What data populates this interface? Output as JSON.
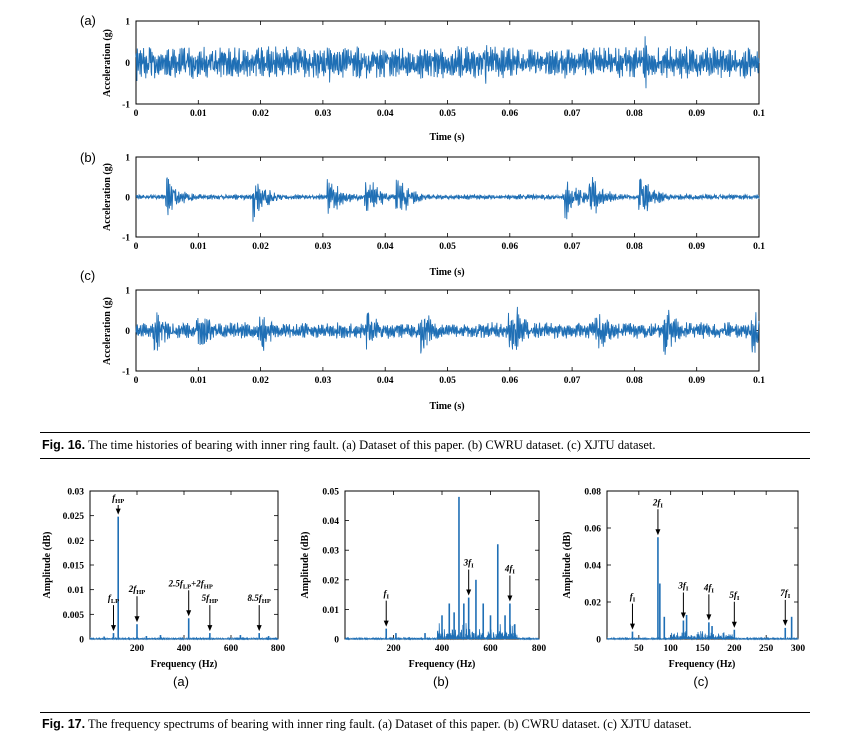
{
  "fig16": {
    "caption_label": "Fig. 16.",
    "caption_text": "The time histories of bearing with inner ring fault. (a) Dataset of this paper. (b) CWRU dataset. (c) XJTU dataset."
  },
  "fig17": {
    "caption_label": "Fig. 17.",
    "caption_text": "The frequency spectrums of bearing with inner ring fault. (a) Dataset of this paper. (b) CWRU dataset. (c) XJTU dataset."
  },
  "colors": {
    "signal": "#1f6fb5",
    "axis": "#000000"
  },
  "chart_data": [
    {
      "id": "16a",
      "type": "line",
      "panel_label": "(a)",
      "xlabel": "Time (s)",
      "ylabel": "Acceleration (g)",
      "xlim": [
        0,
        0.1
      ],
      "ylim": [
        -1,
        1
      ],
      "xticks": [
        0,
        0.01,
        0.02,
        0.03,
        0.04,
        0.05,
        0.06,
        0.07,
        0.08,
        0.09,
        0.1
      ],
      "xticklabels": [
        "0",
        "0.01",
        "0.02",
        "0.03",
        "0.04",
        "0.05",
        "0.06",
        "0.07",
        "0.08",
        "0.09",
        "0.1"
      ],
      "yticks": [
        -1,
        0,
        1
      ],
      "yticklabels": [
        "-1",
        "0",
        "1"
      ],
      "signal": {
        "envelope_peak_g": 0.55,
        "baseline_g": 0.35,
        "bursts_s": [
          0.0,
          0.031,
          0.056,
          0.082
        ]
      }
    },
    {
      "id": "16b",
      "type": "line",
      "panel_label": "(b)",
      "xlabel": "Time (s)",
      "ylabel": "Acceleration (g)",
      "xlim": [
        0,
        0.1
      ],
      "ylim": [
        -1,
        1
      ],
      "xticks": [
        0,
        0.01,
        0.02,
        0.03,
        0.04,
        0.05,
        0.06,
        0.07,
        0.08,
        0.09,
        0.1
      ],
      "xticklabels": [
        "0",
        "0.01",
        "0.02",
        "0.03",
        "0.04",
        "0.05",
        "0.06",
        "0.07",
        "0.08",
        "0.09",
        "0.1"
      ],
      "yticks": [
        -1,
        0,
        1
      ],
      "yticklabels": [
        "-1",
        "0",
        "1"
      ],
      "signal": {
        "envelope_peak_g": 0.55,
        "baseline_g": 0.06,
        "bursts_s": [
          0.005,
          0.019,
          0.031,
          0.037,
          0.042,
          0.069,
          0.073,
          0.081
        ]
      }
    },
    {
      "id": "16c",
      "type": "line",
      "panel_label": "(c)",
      "xlabel": "Time (s)",
      "ylabel": "Acceleration (g)",
      "xlim": [
        0,
        0.1
      ],
      "ylim": [
        -1,
        1
      ],
      "xticks": [
        0,
        0.01,
        0.02,
        0.03,
        0.04,
        0.05,
        0.06,
        0.07,
        0.08,
        0.09,
        0.1
      ],
      "xticklabels": [
        "0",
        "0.01",
        "0.02",
        "0.03",
        "0.04",
        "0.05",
        "0.06",
        "0.07",
        "0.08",
        "0.09",
        "0.1"
      ],
      "yticks": [
        -1,
        0,
        1
      ],
      "yticklabels": [
        "-1",
        "0",
        "1"
      ],
      "signal": {
        "envelope_peak_g": 0.6,
        "baseline_g": 0.18,
        "bursts_s": [
          0.003,
          0.01,
          0.02,
          0.037,
          0.046,
          0.06,
          0.061,
          0.074,
          0.085,
          0.099
        ]
      }
    },
    {
      "id": "17a",
      "type": "line",
      "panel_label": "(a)",
      "xlabel": "Frequency (Hz)",
      "ylabel": "Amplitude (dB)",
      "xlim": [
        0,
        800
      ],
      "ylim": [
        0,
        0.03
      ],
      "xticks": [
        200,
        400,
        600,
        800
      ],
      "xticklabels": [
        "200",
        "400",
        "600",
        "800"
      ],
      "yticks": [
        0,
        0.005,
        0.01,
        0.015,
        0.02,
        0.025,
        0.03
      ],
      "yticklabels": [
        "0",
        "0.005",
        "0.01",
        "0.015",
        "0.02",
        "0.025",
        "0.03"
      ],
      "peaks": [
        [
          60,
          0.0005
        ],
        [
          100,
          0.0012
        ],
        [
          120,
          0.0248
        ],
        [
          200,
          0.003
        ],
        [
          240,
          0.0006
        ],
        [
          300,
          0.0008
        ],
        [
          420,
          0.0042
        ],
        [
          510,
          0.0012
        ],
        [
          640,
          0.0008
        ],
        [
          720,
          0.0012
        ],
        [
          760,
          0.0006
        ]
      ],
      "annotations": [
        {
          "text": "f",
          "sub": "LP",
          "x": 100,
          "y": 0.0012
        },
        {
          "text": "f",
          "sub": "HP",
          "x": 120,
          "y": 0.0248
        },
        {
          "text": "2f",
          "sub": "HP",
          "x": 200,
          "y": 0.003
        },
        {
          "text": "2.5f",
          "sub": "LP",
          "text2": "+2f",
          "sub2": "HP",
          "x": 420,
          "y": 0.0042
        },
        {
          "text": "5f",
          "sub": "HP",
          "x": 510,
          "y": 0.0012
        },
        {
          "text": "8.5f",
          "sub": "HP",
          "x": 720,
          "y": 0.0012
        }
      ]
    },
    {
      "id": "17b",
      "type": "line",
      "panel_label": "(b)",
      "xlabel": "Frequency (Hz)",
      "ylabel": "Amplitude (dB)",
      "xlim": [
        0,
        800
      ],
      "ylim": [
        0,
        0.05
      ],
      "xticks": [
        200,
        400,
        600,
        800
      ],
      "xticklabels": [
        "200",
        "400",
        "600",
        "800"
      ],
      "yticks": [
        0,
        0.01,
        0.02,
        0.03,
        0.04,
        0.05
      ],
      "yticklabels": [
        "0",
        "0.01",
        "0.02",
        "0.03",
        "0.04",
        "0.05"
      ],
      "peaks": [
        [
          170,
          0.0035
        ],
        [
          210,
          0.002
        ],
        [
          330,
          0.002
        ],
        [
          400,
          0.008
        ],
        [
          430,
          0.012
        ],
        [
          450,
          0.009
        ],
        [
          470,
          0.048
        ],
        [
          490,
          0.012
        ],
        [
          510,
          0.014
        ],
        [
          540,
          0.02
        ],
        [
          570,
          0.012
        ],
        [
          600,
          0.008
        ],
        [
          630,
          0.032
        ],
        [
          660,
          0.008
        ],
        [
          680,
          0.012
        ],
        [
          700,
          0.005
        ]
      ],
      "annotations": [
        {
          "text": "f",
          "sub": "I",
          "x": 170,
          "y": 0.0035
        },
        {
          "text": "3f",
          "sub": "I",
          "x": 510,
          "y": 0.014
        },
        {
          "text": "4f",
          "sub": "I",
          "x": 680,
          "y": 0.012
        }
      ]
    },
    {
      "id": "17c",
      "type": "line",
      "panel_label": "(c)",
      "xlabel": "Frequency (Hz)",
      "ylabel": "Amplitude (dB)",
      "xlim": [
        0,
        300
      ],
      "ylim": [
        0,
        0.08
      ],
      "xticks": [
        50,
        100,
        150,
        200,
        250,
        300
      ],
      "xticklabels": [
        "50",
        "100",
        "150",
        "200",
        "250",
        "300"
      ],
      "yticks": [
        0,
        0.02,
        0.04,
        0.06,
        0.08
      ],
      "yticklabels": [
        "0",
        "0.02",
        "0.04",
        "0.06",
        "0.08"
      ],
      "peaks": [
        [
          40,
          0.004
        ],
        [
          80,
          0.055
        ],
        [
          83,
          0.03
        ],
        [
          90,
          0.012
        ],
        [
          120,
          0.01
        ],
        [
          125,
          0.013
        ],
        [
          160,
          0.009
        ],
        [
          165,
          0.007
        ],
        [
          200,
          0.005
        ],
        [
          280,
          0.006
        ],
        [
          290,
          0.012
        ]
      ],
      "annotations": [
        {
          "text": "f",
          "sub": "I",
          "x": 40,
          "y": 0.004
        },
        {
          "text": "2f",
          "sub": "I",
          "x": 80,
          "y": 0.055
        },
        {
          "text": "3f",
          "sub": "I",
          "x": 120,
          "y": 0.01
        },
        {
          "text": "4f",
          "sub": "I",
          "x": 160,
          "y": 0.009
        },
        {
          "text": "5f",
          "sub": "I",
          "x": 200,
          "y": 0.005
        },
        {
          "text": "7f",
          "sub": "I",
          "x": 280,
          "y": 0.006
        }
      ]
    }
  ]
}
